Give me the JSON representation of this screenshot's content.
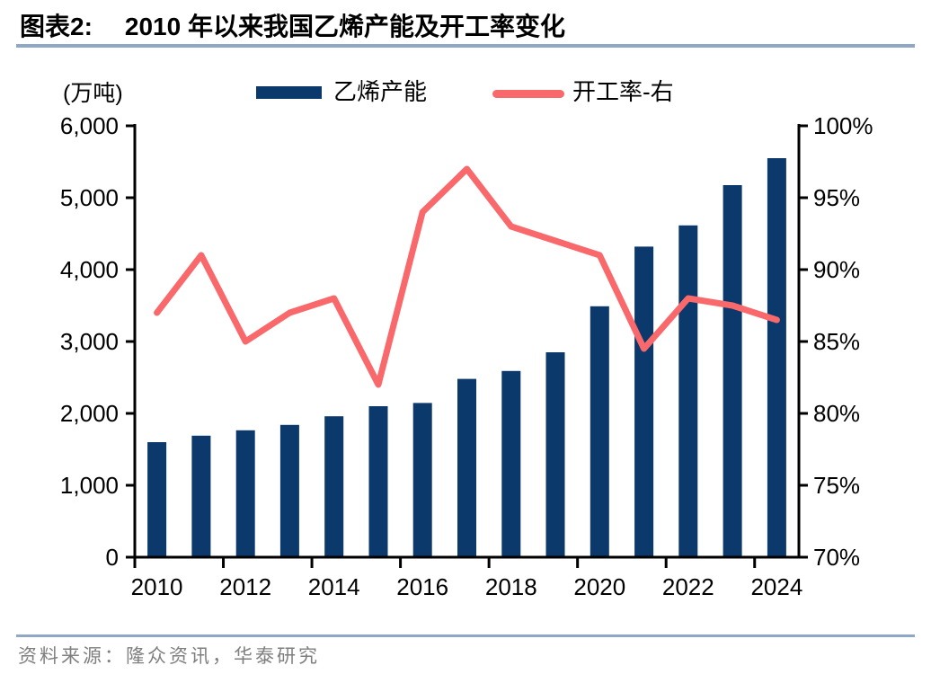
{
  "header": {
    "figure_label": "图表2:",
    "title": "2010 年以来我国乙烯产能及开工率变化"
  },
  "chart_data": {
    "type": "bar+line",
    "title": "2010 年以来我国乙烯产能及开工率变化",
    "categories": [
      "2010",
      "2011",
      "2012",
      "2013",
      "2014",
      "2015",
      "2016",
      "2017",
      "2018",
      "2019",
      "2020",
      "2021",
      "2022",
      "2023",
      "2024"
    ],
    "x_tick_labels": [
      "2010",
      "2012",
      "2014",
      "2016",
      "2018",
      "2020",
      "2022",
      "2024"
    ],
    "series": [
      {
        "name": "乙烯产能",
        "type": "bar",
        "axis": "left",
        "values": [
          1600,
          1690,
          1765,
          1840,
          1960,
          2100,
          2145,
          2480,
          2590,
          2850,
          3490,
          4320,
          4615,
          5175,
          5550
        ]
      },
      {
        "name": "开工率-右",
        "type": "line",
        "axis": "right",
        "values": [
          87,
          91,
          85,
          87,
          88,
          82,
          94,
          97,
          93,
          92,
          91,
          84.5,
          88,
          87.5,
          86.5
        ]
      }
    ],
    "left_axis": {
      "unit_label": "(万吨)",
      "min": 0,
      "max": 6000,
      "step": 1000
    },
    "right_axis": {
      "min": 70,
      "max": 100,
      "step": 5,
      "suffix": "%"
    },
    "legend_position": "top",
    "gridlines": false
  },
  "colors": {
    "bar": "#0C396B",
    "line": "#F9696C",
    "axis": "#000000",
    "rule": "#8FA8C6",
    "source_text": "#7F7F7F"
  },
  "source": {
    "text": "资料来源：隆众资讯，华泰研究"
  }
}
